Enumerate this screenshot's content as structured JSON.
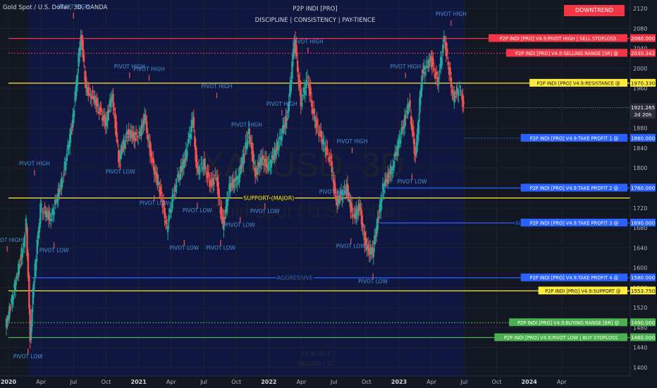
{
  "header": {
    "symbol": "Gold Spot / U.S. Dollar, 3D, OANDA"
  },
  "indicator": {
    "title": "P2P INDI [PRO]",
    "tagline": "DISCIPLINE  |  CONSISTENCY  |  PAY-TIENCE",
    "trend_badge": "DOWNTREND"
  },
  "watermark": {
    "symbol": "XAUUSD, 3D",
    "name": "Gold Spot / U.S. Dollar",
    "bottom1": "24/6/2023",
    "bottom2": "XAUUSD | 3D"
  },
  "colors": {
    "bg": "#131722",
    "shade": "#0f1740",
    "red": "#f23645",
    "yellow": "#ffeb3b",
    "blue": "#2962ff",
    "green": "#4caf50",
    "up": "#26a69a",
    "down": "#ef5350",
    "pivot": "#4a8fd8"
  },
  "chart_data": {
    "type": "candlestick",
    "y_axis": {
      "min": 1390,
      "max": 2130,
      "ticks": [
        1400,
        1440,
        1480,
        1520,
        1560,
        1600,
        1640,
        1680,
        1720,
        1760,
        1800,
        1840,
        1880,
        1920,
        1960,
        2000,
        2040,
        2080,
        2120
      ]
    },
    "x_axis": {
      "min": 2020.0,
      "max": 2024.7,
      "ticks": [
        {
          "x": 2020.0,
          "label": "2020",
          "bold": true
        },
        {
          "x": 2020.25,
          "label": "Apr"
        },
        {
          "x": 2020.5,
          "label": "Jul"
        },
        {
          "x": 2020.75,
          "label": "Oct"
        },
        {
          "x": 2021.0,
          "label": "2021",
          "bold": true
        },
        {
          "x": 2021.25,
          "label": "Apr"
        },
        {
          "x": 2021.5,
          "label": "Jul"
        },
        {
          "x": 2021.75,
          "label": "Oct"
        },
        {
          "x": 2022.0,
          "label": "2022",
          "bold": true
        },
        {
          "x": 2022.25,
          "label": "Apr"
        },
        {
          "x": 2022.5,
          "label": "Jul"
        },
        {
          "x": 2022.75,
          "label": "Oct"
        },
        {
          "x": 2023.0,
          "label": "2023",
          "bold": true
        },
        {
          "x": 2023.25,
          "label": "Apr"
        },
        {
          "x": 2023.5,
          "label": "Jul"
        },
        {
          "x": 2023.75,
          "label": "Oct"
        },
        {
          "x": 2024.0,
          "label": "2024",
          "bold": true
        },
        {
          "x": 2024.25,
          "label": "Apr"
        }
      ]
    },
    "shaded_region": [
      2020.15,
      2023.5
    ],
    "price_path": [
      [
        2019.98,
        1480
      ],
      [
        2020.05,
        1560
      ],
      [
        2020.12,
        1650
      ],
      [
        2020.14,
        1690
      ],
      [
        2020.17,
        1460
      ],
      [
        2020.2,
        1580
      ],
      [
        2020.25,
        1720
      ],
      [
        2020.33,
        1700
      ],
      [
        2020.42,
        1780
      ],
      [
        2020.5,
        1900
      ],
      [
        2020.56,
        2070
      ],
      [
        2020.6,
        1960
      ],
      [
        2020.66,
        1940
      ],
      [
        2020.75,
        1890
      ],
      [
        2020.8,
        1950
      ],
      [
        2020.85,
        1820
      ],
      [
        2020.92,
        1870
      ],
      [
        2021.0,
        1860
      ],
      [
        2021.05,
        1900
      ],
      [
        2021.1,
        1820
      ],
      [
        2021.18,
        1740
      ],
      [
        2021.22,
        1680
      ],
      [
        2021.28,
        1760
      ],
      [
        2021.36,
        1820
      ],
      [
        2021.42,
        1900
      ],
      [
        2021.45,
        1790
      ],
      [
        2021.5,
        1810
      ],
      [
        2021.55,
        1770
      ],
      [
        2021.6,
        1780
      ],
      [
        2021.65,
        1680
      ],
      [
        2021.7,
        1760
      ],
      [
        2021.77,
        1780
      ],
      [
        2021.85,
        1870
      ],
      [
        2021.9,
        1790
      ],
      [
        2021.95,
        1820
      ],
      [
        2022.0,
        1800
      ],
      [
        2022.08,
        1850
      ],
      [
        2022.15,
        1910
      ],
      [
        2022.2,
        2060
      ],
      [
        2022.25,
        1930
      ],
      [
        2022.3,
        1980
      ],
      [
        2022.35,
        1900
      ],
      [
        2022.42,
        1850
      ],
      [
        2022.48,
        1810
      ],
      [
        2022.52,
        1730
      ],
      [
        2022.6,
        1760
      ],
      [
        2022.65,
        1700
      ],
      [
        2022.7,
        1720
      ],
      [
        2022.75,
        1640
      ],
      [
        2022.8,
        1630
      ],
      [
        2022.88,
        1760
      ],
      [
        2022.95,
        1800
      ],
      [
        2023.0,
        1850
      ],
      [
        2023.08,
        1930
      ],
      [
        2023.13,
        1820
      ],
      [
        2023.18,
        1990
      ],
      [
        2023.25,
        2020
      ],
      [
        2023.3,
        1970
      ],
      [
        2023.35,
        2060
      ],
      [
        2023.42,
        1940
      ],
      [
        2023.47,
        1960
      ],
      [
        2023.5,
        1921
      ]
    ],
    "last_price": 1921.265,
    "countdown": "2d 20h",
    "levels": [
      {
        "name": "pivot-high-sell-stoploss",
        "y": 2060,
        "color": "red",
        "x_start": 2020.0,
        "dashed": false,
        "label": "P2P INDI [PRO] V4.9:PIVOT HIGH | SELL STOPLOSS",
        "value": "2060.000"
      },
      {
        "name": "selling-range",
        "y": 2030.342,
        "color": "red",
        "x_start": 2020.0,
        "dashed": true,
        "label": "P2P INDI [PRO] V4.9:SELLING RANGE [SR] @",
        "value": "2030.342"
      },
      {
        "name": "resistance",
        "y": 1970.33,
        "color": "yellow",
        "x_start": 2020.0,
        "dashed": false,
        "label": "P2P INDI [PRO] V4.9:RESISTANCE @",
        "value": "1970.330"
      },
      {
        "name": "take-profit-1",
        "y": 1860,
        "color": "blue",
        "x_start": 2023.5,
        "dashed": true,
        "label": "P2P INDI [PRO] V4.9:TAKE PROFIT 1 @",
        "value": "1860.000"
      },
      {
        "name": "take-profit-2",
        "y": 1760,
        "color": "blue",
        "x_start": 2022.9,
        "dashed": false,
        "label": "P2P INDI [PRO] V4.9:TAKE PROFIT 2 @",
        "value": "1760.000"
      },
      {
        "name": "take-profit-3",
        "y": 1690,
        "color": "blue",
        "x_start": 2022.85,
        "dashed": false,
        "label": "P2P INDI [PRO] V4.9:TAKE PROFIT 3 @",
        "value": "1690.000"
      },
      {
        "name": "take-profit-4",
        "y": 1580,
        "color": "blue",
        "x_start": 2020.18,
        "dashed": false,
        "label": "P2P INDI [PRO] V4.9:TAKE PROFIT 4 @",
        "value": "1580.000"
      },
      {
        "name": "support",
        "y": 1553.75,
        "color": "yellow",
        "x_start": 2020.0,
        "dashed": false,
        "label": "P2P INDI [PRO] V4.9:SUPPORT @",
        "value": "1553.750"
      },
      {
        "name": "buying-range",
        "y": 1490,
        "color": "green",
        "x_start": 2020.0,
        "dashed": true,
        "label": "P2P INDI [PRO] V4.9:BUYING RANGE [BR] @",
        "value": "1490.000"
      },
      {
        "name": "pivot-low-buy-stoploss",
        "y": 1460,
        "color": "green",
        "x_start": 2020.0,
        "dashed": false,
        "label": "P2P INDI [PRO] V4.9:PIVOT LOW | BUY STOPLOSS",
        "value": "1460.000"
      }
    ],
    "support_major": {
      "y": 1740,
      "x_start": 2020.0,
      "x_end": 2024.5,
      "label": "SUPPORT (MAJOR)",
      "label_x": 2022.0
    },
    "aggressive_labels": [
      {
        "text": "AGGRESSIVE",
        "x": 2024.03,
        "y": 1690
      },
      {
        "text": "AGGRESSIVE",
        "x": 2022.2,
        "y": 1580
      }
    ],
    "pivot_labels": [
      {
        "text": "PIVOT HIGH",
        "x": 2020.5,
        "y": 2120,
        "kind": "high"
      },
      {
        "text": "PIVOT HIGH",
        "x": 2020.93,
        "y": 2000,
        "kind": "high"
      },
      {
        "text": "PIVOT HIGH",
        "x": 2021.08,
        "y": 1995,
        "kind": "high"
      },
      {
        "text": "PIVOT HIGH",
        "x": 2020.2,
        "y": 1805,
        "kind": "high"
      },
      {
        "text": "PIVOT HIGH",
        "x": 2019.99,
        "y": 1652,
        "kind": "high"
      },
      {
        "text": "PIVOT HIGH",
        "x": 2021.6,
        "y": 1960,
        "kind": "high"
      },
      {
        "text": "PIVOT HIGH",
        "x": 2022.1,
        "y": 1925,
        "kind": "high"
      },
      {
        "text": "PIVOT HIGH",
        "x": 2021.83,
        "y": 1883,
        "kind": "high"
      },
      {
        "text": "PIVOT HIGH",
        "x": 2022.3,
        "y": 2050,
        "kind": "high"
      },
      {
        "text": "PIVOT HIGH",
        "x": 2022.64,
        "y": 1850,
        "kind": "high"
      },
      {
        "text": "PIVOT HIGH",
        "x": 2023.05,
        "y": 2000,
        "kind": "high"
      },
      {
        "text": "PIVOT HIGH",
        "x": 2023.4,
        "y": 2105,
        "kind": "high"
      },
      {
        "text": "PIVOT LOW",
        "x": 2020.35,
        "y": 1631,
        "kind": "low"
      },
      {
        "text": "PIVOT LOW",
        "x": 2020.86,
        "y": 1789,
        "kind": "low"
      },
      {
        "text": "PIVOT LOW",
        "x": 2021.12,
        "y": 1726,
        "kind": "low"
      },
      {
        "text": "PIVOT LOW",
        "x": 2021.45,
        "y": 1711,
        "kind": "low"
      },
      {
        "text": "PIVOT LOW",
        "x": 2021.35,
        "y": 1636,
        "kind": "low"
      },
      {
        "text": "PIVOT LOW",
        "x": 2021.78,
        "y": 1682,
        "kind": "low"
      },
      {
        "text": "PIVOT LOW",
        "x": 2021.63,
        "y": 1636,
        "kind": "low"
      },
      {
        "text": "PIVOT LOW",
        "x": 2021.97,
        "y": 1710,
        "kind": "low"
      },
      {
        "text": "PIVOT LOW",
        "x": 2022.5,
        "y": 1749,
        "kind": "low"
      },
      {
        "text": "PIVOT LOW",
        "x": 2022.63,
        "y": 1640,
        "kind": "low"
      },
      {
        "text": "PIVOT LOW",
        "x": 2022.8,
        "y": 1569,
        "kind": "low"
      },
      {
        "text": "PIVOT LOW",
        "x": 2023.1,
        "y": 1769,
        "kind": "low"
      },
      {
        "text": "PIVOT LOW",
        "x": 2020.15,
        "y": 1418,
        "kind": "low"
      }
    ]
  }
}
